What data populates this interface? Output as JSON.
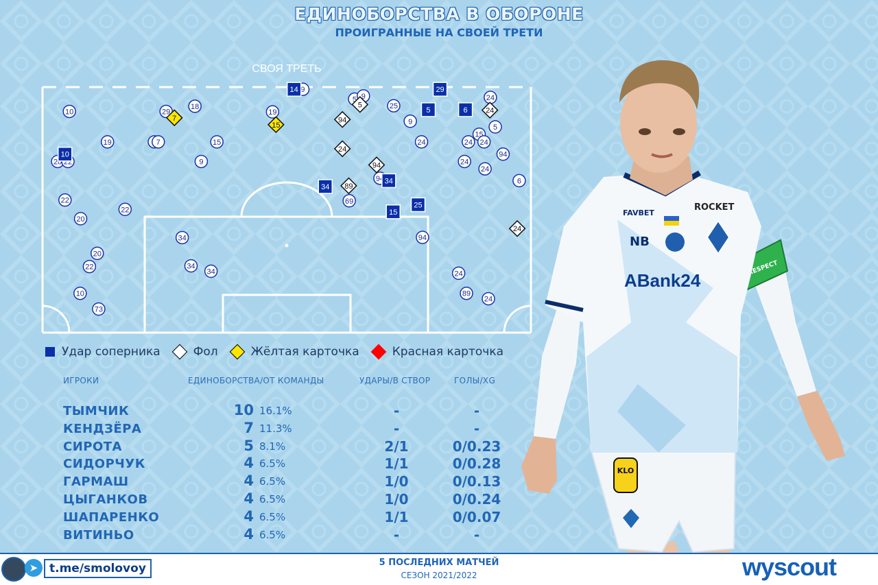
{
  "title": "ЕДИНОБОРСТВА В ОБОРОНЕ",
  "subtitle": "ПРОИГРАННЫЕ НА СВОЕЙ ТРЕТИ",
  "pitch_label": "СВОЯ ТРЕТЬ",
  "legend": [
    {
      "label": "Удар соперника",
      "color": "#0a2fa8",
      "shape": "square"
    },
    {
      "label": "Фол",
      "color": "#ffffff",
      "shape": "diamond"
    },
    {
      "label": "Жёлтая карточка",
      "color": "#ffe600",
      "shape": "diamond"
    },
    {
      "label": "Красная карточка",
      "color": "#ff0000",
      "shape": "diamond"
    }
  ],
  "table": {
    "headers": {
      "players": "ИГРОКИ",
      "duels": "ЕДИНОБОРСТВА/ОТ КОМАНДЫ",
      "shots": "УДАРЫ/В СТВОР",
      "goals": "ГОЛЫ/XG"
    },
    "rows": [
      {
        "name": "ТЫМЧИК",
        "count": "10",
        "pct": "16.1%",
        "shots": "-",
        "xg": "-"
      },
      {
        "name": "КЕНДЗЁРА",
        "count": "7",
        "pct": "11.3%",
        "shots": "-",
        "xg": "-"
      },
      {
        "name": "СИРОТА",
        "count": "5",
        "pct": "8.1%",
        "shots": "2/1",
        "xg": "0/0.23"
      },
      {
        "name": "СИДОРЧУК",
        "count": "4",
        "pct": "6.5%",
        "shots": "1/1",
        "xg": "0/0.28"
      },
      {
        "name": "ГАРМАШ",
        "count": "4",
        "pct": "6.5%",
        "shots": "1/0",
        "xg": "0/0.13"
      },
      {
        "name": "ЦЫГАНКОВ",
        "count": "4",
        "pct": "6.5%",
        "shots": "1/0",
        "xg": "0/0.24"
      },
      {
        "name": "ШАПАРЕНКО",
        "count": "4",
        "pct": "6.5%",
        "shots": "1/1",
        "xg": "0/0.07"
      },
      {
        "name": "ВИТИНЬО",
        "count": "4",
        "pct": "6.5%",
        "shots": "-",
        "xg": "-"
      }
    ]
  },
  "footer": {
    "handle": "t.me/smolovoy",
    "matches": "5 ПОСЛЕДНИХ МАТЧЕЙ",
    "season": "СЕЗОН 2021/2022",
    "brand": "wyscout"
  },
  "jersey": {
    "sponsor_main": "ABank24",
    "sponsor_top_left": "FAVBET",
    "sponsor_top_right": "ROCKET",
    "armband": "RESPECT",
    "shorts_logo": "KLO"
  },
  "colors": {
    "background": "#a9d4ec",
    "accent": "#1f64b8",
    "shot_square": "#0a2fa8",
    "yellow": "#ffe600",
    "red": "#ff0000"
  },
  "chart_data": {
    "type": "scatter",
    "x_meaning": "pitch width, 0 = left touchline, 100 = right touchline",
    "y_meaning": "pitch depth, 0 = own-third line, 100 = own goal line",
    "duels": [
      {
        "n": "10",
        "x": 5.5,
        "y": 9.9
      },
      {
        "n": "29",
        "x": 25.3,
        "y": 9.9
      },
      {
        "n": "18",
        "x": 31.2,
        "y": 7.8
      },
      {
        "n": "19",
        "x": 47.1,
        "y": 10.1
      },
      {
        "n": "5",
        "x": 63.9,
        "y": 4.9
      },
      {
        "n": "25",
        "x": 71.9,
        "y": 7.6
      },
      {
        "n": "9",
        "x": 75.3,
        "y": 13.9
      },
      {
        "n": "24",
        "x": 91.7,
        "y": 4.2
      },
      {
        "n": "5",
        "x": 92.7,
        "y": 16.2
      },
      {
        "n": "15",
        "x": 89.4,
        "y": 19.2
      },
      {
        "n": "24",
        "x": 87.2,
        "y": 22.3
      },
      {
        "n": "24",
        "x": 90.4,
        "y": 22.3
      },
      {
        "n": "19",
        "x": 13.3,
        "y": 22.3
      },
      {
        "n": "7",
        "x": 22.9,
        "y": 22.3
      },
      {
        "n": "7",
        "x": 23.7,
        "y": 22.3
      },
      {
        "n": "15",
        "x": 35.7,
        "y": 22.3
      },
      {
        "n": "24",
        "x": 77.6,
        "y": 22.3
      },
      {
        "n": "94",
        "x": 94.3,
        "y": 27.3
      },
      {
        "n": "20",
        "x": 3.1,
        "y": 30.3
      },
      {
        "n": "22",
        "x": 5.2,
        "y": 30.3
      },
      {
        "n": "9",
        "x": 32.5,
        "y": 30.3
      },
      {
        "n": "24",
        "x": 86.4,
        "y": 30.3
      },
      {
        "n": "24",
        "x": 90.6,
        "y": 33.3
      },
      {
        "n": "94",
        "x": 69.1,
        "y": 37.1
      },
      {
        "n": "6",
        "x": 97.6,
        "y": 38.1
      },
      {
        "n": "69",
        "x": 62.8,
        "y": 46.3
      },
      {
        "n": "22",
        "x": 4.6,
        "y": 46.0
      },
      {
        "n": "22",
        "x": 16.9,
        "y": 49.8
      },
      {
        "n": "20",
        "x": 7.8,
        "y": 53.6
      },
      {
        "n": "34",
        "x": 28.6,
        "y": 61.3
      },
      {
        "n": "94",
        "x": 77.8,
        "y": 61.2
      },
      {
        "n": "20",
        "x": 11.2,
        "y": 67.7
      },
      {
        "n": "22",
        "x": 9.6,
        "y": 73.1
      },
      {
        "n": "34",
        "x": 30.4,
        "y": 72.8
      },
      {
        "n": "34",
        "x": 34.5,
        "y": 75.0
      },
      {
        "n": "24",
        "x": 85.2,
        "y": 75.8
      },
      {
        "n": "10",
        "x": 7.7,
        "y": 84.0
      },
      {
        "n": "89",
        "x": 86.8,
        "y": 84.0
      },
      {
        "n": "24",
        "x": 91.3,
        "y": 86.2
      },
      {
        "n": "73",
        "x": 11.5,
        "y": 90.4
      },
      {
        "n": "9",
        "x": 53.3,
        "y": 0.9
      },
      {
        "n": "9",
        "x": 65.7,
        "y": 3.6
      }
    ],
    "shots": [
      {
        "n": "14",
        "x": 51.5,
        "y": 0.9
      },
      {
        "n": "29",
        "x": 81.4,
        "y": 0.9
      },
      {
        "n": "5",
        "x": 79.0,
        "y": 9.2
      },
      {
        "n": "6",
        "x": 86.6,
        "y": 9.2
      },
      {
        "n": "10",
        "x": 4.6,
        "y": 27.3
      },
      {
        "n": "34",
        "x": 57.9,
        "y": 40.5
      },
      {
        "n": "34",
        "x": 70.9,
        "y": 38.1
      },
      {
        "n": "25",
        "x": 76.9,
        "y": 47.9
      },
      {
        "n": "15",
        "x": 71.8,
        "y": 50.8
      }
    ],
    "fouls": [
      {
        "n": "5",
        "x": 65.0,
        "y": 7.1
      },
      {
        "n": "94",
        "x": 61.4,
        "y": 13.2
      },
      {
        "n": "24",
        "x": 91.6,
        "y": 9.4
      },
      {
        "n": "24",
        "x": 61.4,
        "y": 25.1
      },
      {
        "n": "94",
        "x": 68.4,
        "y": 31.7
      },
      {
        "n": "89",
        "x": 62.7,
        "y": 40.2
      },
      {
        "n": "24",
        "x": 97.2,
        "y": 57.6
      }
    ],
    "yellow_cards": [
      {
        "n": "7",
        "x": 27.0,
        "y": 12.5
      },
      {
        "n": "15",
        "x": 47.8,
        "y": 15.3
      }
    ],
    "red_cards": []
  }
}
